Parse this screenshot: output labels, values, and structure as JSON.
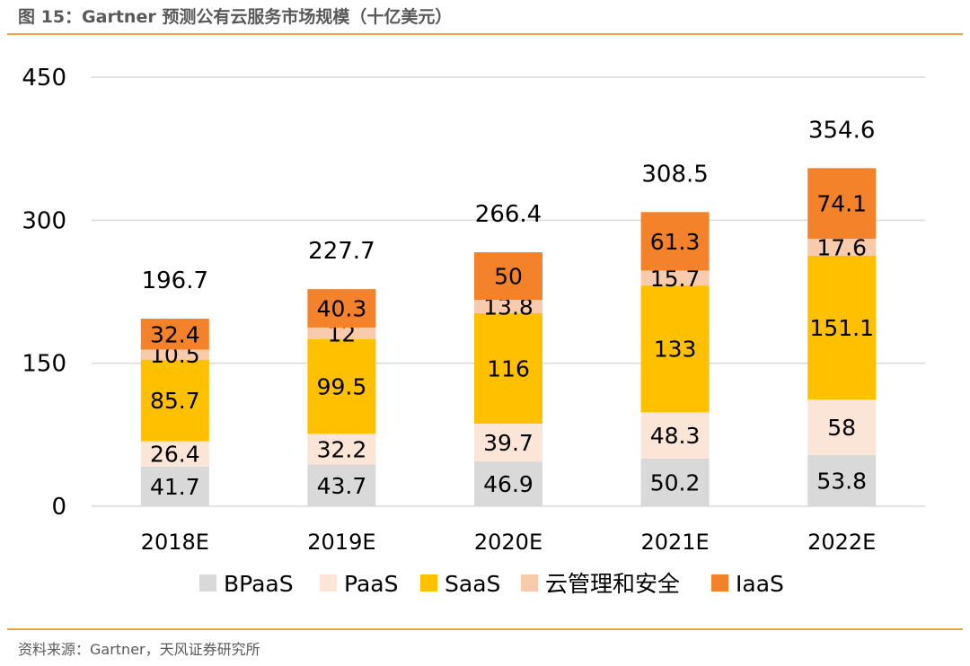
{
  "header": {
    "title": "图 15：Gartner 预测公有云服务市场规模（十亿美元）"
  },
  "footer": {
    "source": "资料来源：Gartner，天风证券研究所"
  },
  "colors": {
    "BPaaS": "#D9D9D9",
    "PaaS": "#FBE5D6",
    "SaaS": "#FFC000",
    "cloud_mgmt": "#F8CBAD",
    "IaaS": "#F4822A",
    "gridline": "#D9D9D9",
    "rule": "#F0A24A"
  },
  "chart_data": {
    "type": "bar",
    "stacked": true,
    "title": "Gartner 预测公有云服务市场规模（十亿美元）",
    "categories": [
      "2018E",
      "2019E",
      "2020E",
      "2021E",
      "2022E"
    ],
    "series": [
      {
        "name": "BPaaS",
        "values": [
          41.7,
          43.7,
          46.9,
          50.2,
          53.8
        ]
      },
      {
        "name": "PaaS",
        "values": [
          26.4,
          32.2,
          39.7,
          48.3,
          58
        ]
      },
      {
        "name": "SaaS",
        "values": [
          85.7,
          99.5,
          116,
          133,
          151.1
        ]
      },
      {
        "name": "云管理和安全",
        "values": [
          10.5,
          12,
          13.8,
          15.7,
          17.6
        ]
      },
      {
        "name": "IaaS",
        "values": [
          32.4,
          40.3,
          50,
          61.3,
          74.1
        ]
      }
    ],
    "totals": [
      196.7,
      227.7,
      266.4,
      308.5,
      354.6
    ],
    "total_labels": [
      "196.7",
      "227.7",
      "266.4",
      "308.5",
      "354.6"
    ],
    "value_labels": [
      [
        "41.7",
        "43.7",
        "46.9",
        "50.2",
        "53.8"
      ],
      [
        "26.4",
        "32.2",
        "39.7",
        "48.3",
        "58"
      ],
      [
        "85.7",
        "99.5",
        "116",
        "133",
        "151.1"
      ],
      [
        "10.5",
        "12",
        "13.8",
        "15.7",
        "17.6"
      ],
      [
        "32.4",
        "40.3",
        "50",
        "61.3",
        "74.1"
      ]
    ],
    "y_ticks": [
      "0",
      "150",
      "300",
      "450"
    ],
    "ylim": [
      0,
      450
    ],
    "grid": true,
    "legend_position": "bottom",
    "xlabel": "",
    "ylabel": ""
  }
}
